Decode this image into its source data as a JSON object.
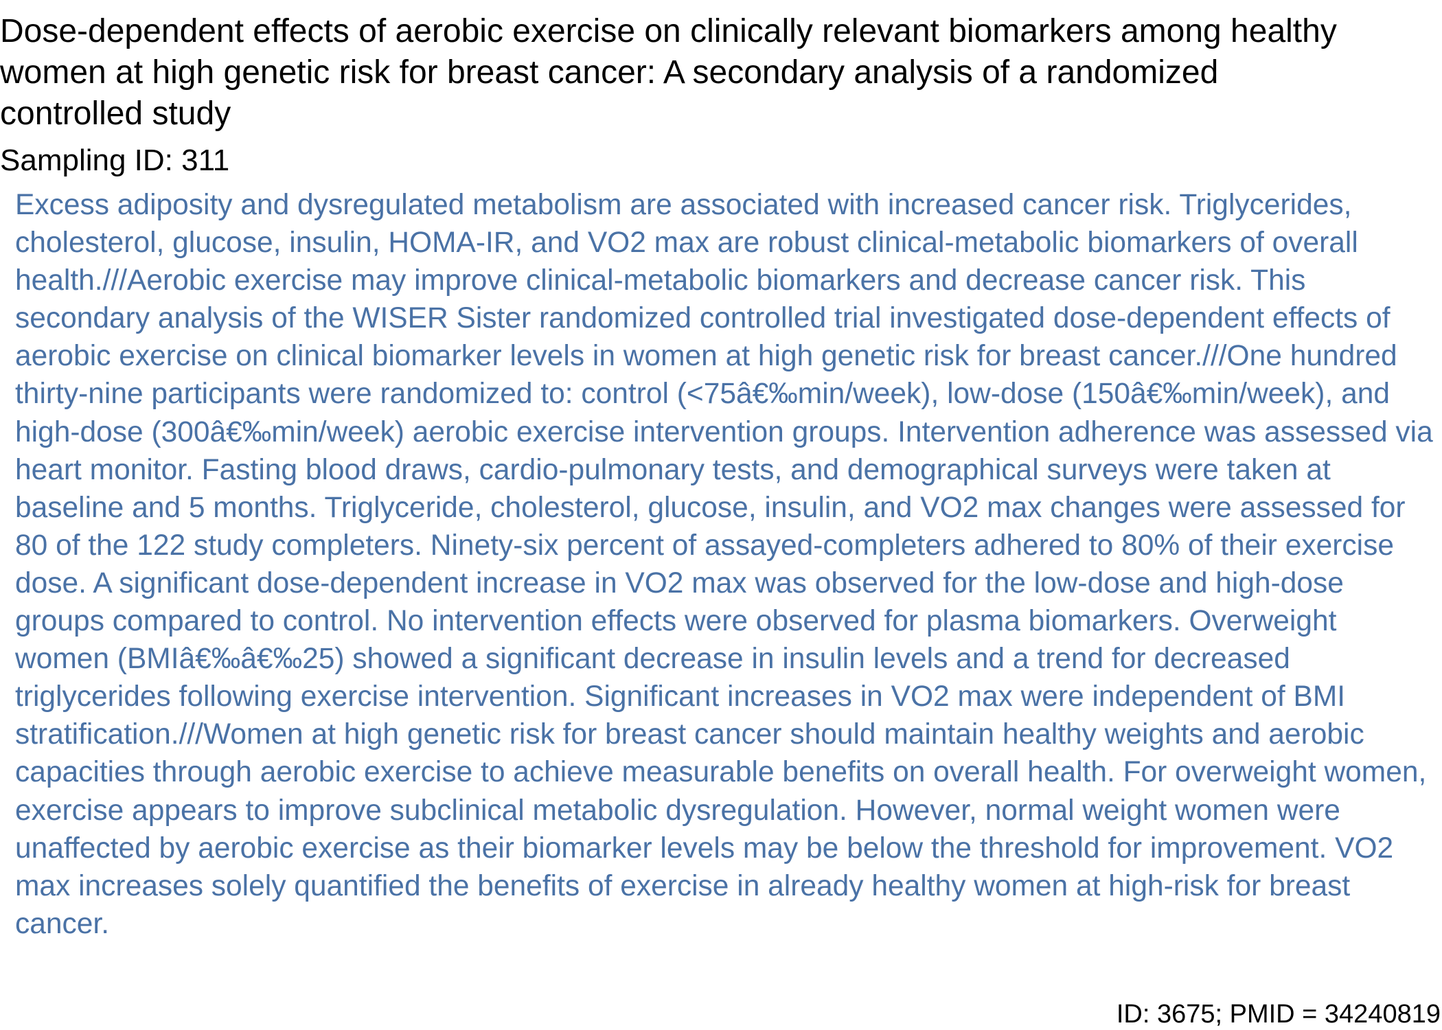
{
  "document": {
    "title": "Dose-dependent effects of aerobic exercise on clinically relevant biomarkers among healthy women at high genetic risk for breast cancer: A secondary analysis of a randomized controlled study",
    "sampling_id": "Sampling ID: 311",
    "abstract": "Excess adiposity and dysregulated metabolism are associated with increased cancer risk. Triglycerides, cholesterol, glucose, insulin, HOMA-IR, and VO2 max are robust clinical-metabolic biomarkers of overall health.///Aerobic exercise may improve clinical-metabolic biomarkers and decrease cancer risk. This secondary analysis of the WISER Sister randomized controlled trial investigated dose-dependent effects of aerobic exercise on clinical biomarker levels in women at high genetic risk for breast cancer.///One hundred thirty-nine participants were randomized to: control (<75â€‰min/week), low-dose (150â€‰min/week), and high-dose (300â€‰min/week) aerobic exercise intervention groups. Intervention adherence was assessed via heart monitor. Fasting blood draws, cardio-pulmonary tests, and demographical surveys were taken at baseline and 5 months. Triglyceride, cholesterol, glucose, insulin, and VO2 max changes were assessed for 80 of the 122 study completers. Ninety-six percent of assayed-completers adhered to 80% of their exercise dose. A significant dose-dependent increase in VO2 max was observed for the low-dose and high-dose groups compared to control. No intervention effects were observed for plasma biomarkers. Overweight women (BMIâ€‰â€‰25) showed a significant decrease in insulin levels and a trend for decreased triglycerides following exercise intervention. Significant increases in VO2 max were independent of BMI stratification.///Women at high genetic risk for breast cancer should maintain healthy weights and aerobic capacities through aerobic exercise to achieve measurable benefits on overall health. For overweight women, exercise appears to improve subclinical metabolic dysregulation. However, normal weight women were unaffected by aerobic exercise as their biomarker levels may be below the threshold for improvement. VO2 max increases solely quantified the benefits of exercise in already healthy women at high-risk for breast cancer.",
    "footer_id": "ID: 3675; PMID = 34240819"
  },
  "colors": {
    "title_text": "#000000",
    "abstract_text": "#4a72a6",
    "background": "#ffffff"
  }
}
